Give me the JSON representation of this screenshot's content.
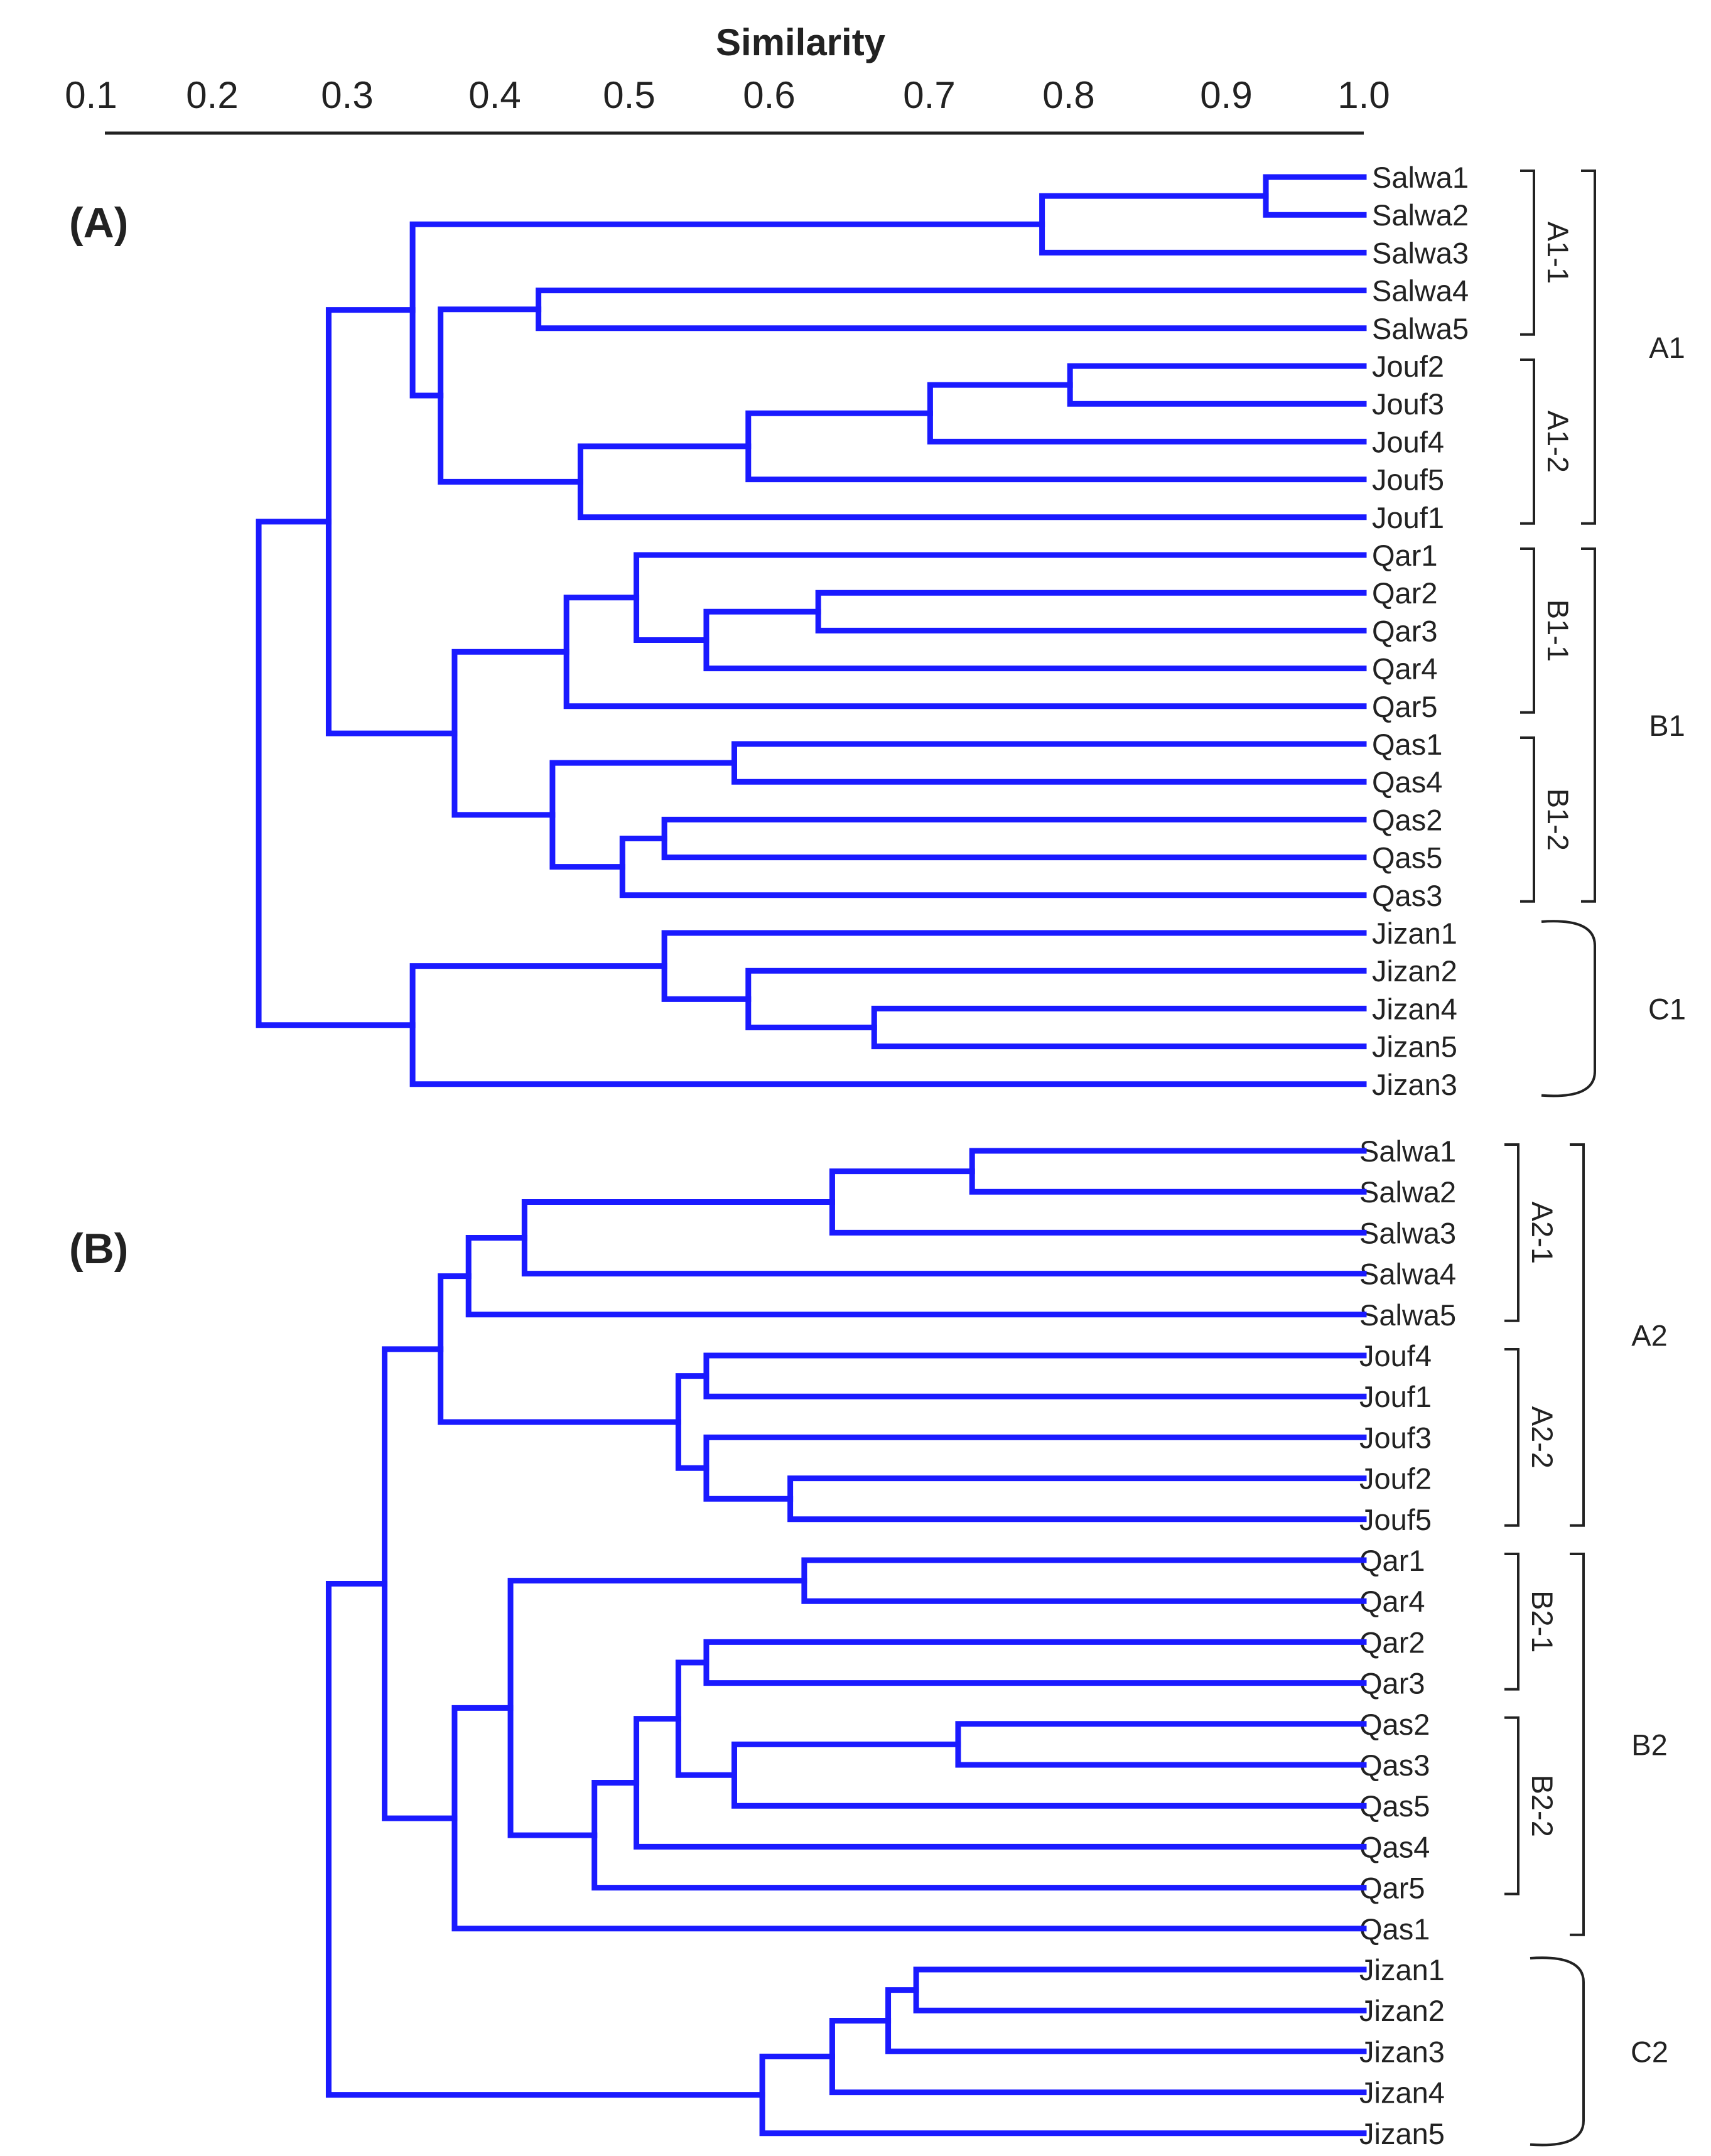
{
  "colors": {
    "tree": "#1a1aff",
    "text": "#222222",
    "bracket": "#222222",
    "background": "#ffffff"
  },
  "axis": {
    "title": "Similarity",
    "ticks": [
      "0.1",
      "0.2",
      "0.3",
      "0.4",
      "0.5",
      "0.6",
      "0.7",
      "0.8",
      "0.9",
      "1.0"
    ]
  },
  "panels": [
    {
      "label": "(A)",
      "leaves": [
        "Salwa1",
        "Salwa2",
        "Salwa3",
        "Salwa4",
        "Salwa5",
        "Jouf2",
        "Jouf3",
        "Jouf4",
        "Jouf5",
        "Jouf1",
        "Qar1",
        "Qar2",
        "Qar3",
        "Qar4",
        "Qar5",
        "Qas1",
        "Qas4",
        "Qas2",
        "Qas5",
        "Qas3",
        "Jizan1",
        "Jizan2",
        "Jizan4",
        "Jizan5",
        "Jizan3"
      ],
      "merges": [
        {
          "a": "L0",
          "b": "L1",
          "sim": 0.93
        },
        {
          "a": "N0",
          "b": "L2",
          "sim": 0.77
        },
        {
          "a": "L3",
          "b": "L4",
          "sim": 0.41
        },
        {
          "a": "L5",
          "b": "L6",
          "sim": 0.79
        },
        {
          "a": "N3",
          "b": "L7",
          "sim": 0.69
        },
        {
          "a": "N4",
          "b": "L8",
          "sim": 0.56
        },
        {
          "a": "N5",
          "b": "L9",
          "sim": 0.44
        },
        {
          "a": "N2",
          "b": "N6",
          "sim": 0.34
        },
        {
          "a": "N1",
          "b": "N7",
          "sim": 0.32
        },
        {
          "a": "L11",
          "b": "L12",
          "sim": 0.61
        },
        {
          "a": "N9",
          "b": "L13",
          "sim": 0.53
        },
        {
          "a": "L10",
          "b": "N10",
          "sim": 0.48
        },
        {
          "a": "N11",
          "b": "L14",
          "sim": 0.43
        },
        {
          "a": "L15",
          "b": "L16",
          "sim": 0.55
        },
        {
          "a": "L17",
          "b": "L18",
          "sim": 0.5
        },
        {
          "a": "N14",
          "b": "L19",
          "sim": 0.47
        },
        {
          "a": "N13",
          "b": "N15",
          "sim": 0.42
        },
        {
          "a": "N12",
          "b": "N16",
          "sim": 0.35
        },
        {
          "a": "N8",
          "b": "N17",
          "sim": 0.26
        },
        {
          "a": "L22",
          "b": "L23",
          "sim": 0.65
        },
        {
          "a": "L21",
          "b": "N19",
          "sim": 0.56
        },
        {
          "a": "L20",
          "b": "N20",
          "sim": 0.5
        },
        {
          "a": "N21",
          "b": "L24",
          "sim": 0.32
        },
        {
          "a": "N18",
          "b": "N22",
          "sim": 0.21
        }
      ],
      "subclusters": [
        {
          "label": "A1-1",
          "from": 0,
          "to": 4
        },
        {
          "label": "A1-2",
          "from": 5,
          "to": 9
        },
        {
          "label": "B1-1",
          "from": 10,
          "to": 14
        },
        {
          "label": "B1-2",
          "from": 15,
          "to": 19
        }
      ],
      "clusters": [
        {
          "label": "A1",
          "from": 0,
          "to": 9,
          "style": "bracket"
        },
        {
          "label": "B1",
          "from": 10,
          "to": 19,
          "style": "bracket"
        },
        {
          "label": "C1",
          "from": 20,
          "to": 24,
          "style": "brace"
        }
      ]
    },
    {
      "label": "(B)",
      "leaves": [
        "Salwa1",
        "Salwa2",
        "Salwa3",
        "Salwa4",
        "Salwa5",
        "Jouf4",
        "Jouf1",
        "Jouf3",
        "Jouf2",
        "Jouf5",
        "Qar1",
        "Qar4",
        "Qar2",
        "Qar3",
        "Qas2",
        "Qas3",
        "Qas5",
        "Qas4",
        "Qar5",
        "Qas1",
        "Jizan1",
        "Jizan2",
        "Jizan3",
        "Jizan4",
        "Jizan5"
      ],
      "merges": [
        {
          "a": "L0",
          "b": "L1",
          "sim": 0.72
        },
        {
          "a": "N0",
          "b": "L2",
          "sim": 0.62
        },
        {
          "a": "N1",
          "b": "L3",
          "sim": 0.4
        },
        {
          "a": "N2",
          "b": "L4",
          "sim": 0.36
        },
        {
          "a": "L5",
          "b": "L6",
          "sim": 0.53
        },
        {
          "a": "L8",
          "b": "L9",
          "sim": 0.59
        },
        {
          "a": "L7",
          "b": "N5",
          "sim": 0.53
        },
        {
          "a": "N4",
          "b": "N6",
          "sim": 0.51
        },
        {
          "a": "N3",
          "b": "N7",
          "sim": 0.34
        },
        {
          "a": "L10",
          "b": "L11",
          "sim": 0.6
        },
        {
          "a": "L12",
          "b": "L13",
          "sim": 0.53
        },
        {
          "a": "L14",
          "b": "L15",
          "sim": 0.71
        },
        {
          "a": "N11",
          "b": "L16",
          "sim": 0.55
        },
        {
          "a": "N10",
          "b": "N12",
          "sim": 0.51
        },
        {
          "a": "N13",
          "b": "L17",
          "sim": 0.48
        },
        {
          "a": "N14",
          "b": "L18",
          "sim": 0.45
        },
        {
          "a": "N9",
          "b": "N15",
          "sim": 0.39
        },
        {
          "a": "N16",
          "b": "L19",
          "sim": 0.35
        },
        {
          "a": "N8",
          "b": "N17",
          "sim": 0.3
        },
        {
          "a": "L20",
          "b": "L21",
          "sim": 0.68
        },
        {
          "a": "N19",
          "b": "L22",
          "sim": 0.66
        },
        {
          "a": "N20",
          "b": "L23",
          "sim": 0.62
        },
        {
          "a": "N21",
          "b": "L24",
          "sim": 0.57
        },
        {
          "a": "N18",
          "b": "N22",
          "sim": 0.26
        }
      ],
      "subclusters": [
        {
          "label": "A2-1",
          "from": 0,
          "to": 4
        },
        {
          "label": "A2-2",
          "from": 5,
          "to": 9
        },
        {
          "label": "B2-1",
          "from": 10,
          "to": 13
        },
        {
          "label": "B2-2",
          "from": 14,
          "to": 18
        }
      ],
      "clusters": [
        {
          "label": "A2",
          "from": 0,
          "to": 9,
          "style": "bracket"
        },
        {
          "label": "B2",
          "from": 10,
          "to": 19,
          "style": "bracket"
        },
        {
          "label": "C2",
          "from": 20,
          "to": 24,
          "style": "brace"
        }
      ]
    }
  ]
}
